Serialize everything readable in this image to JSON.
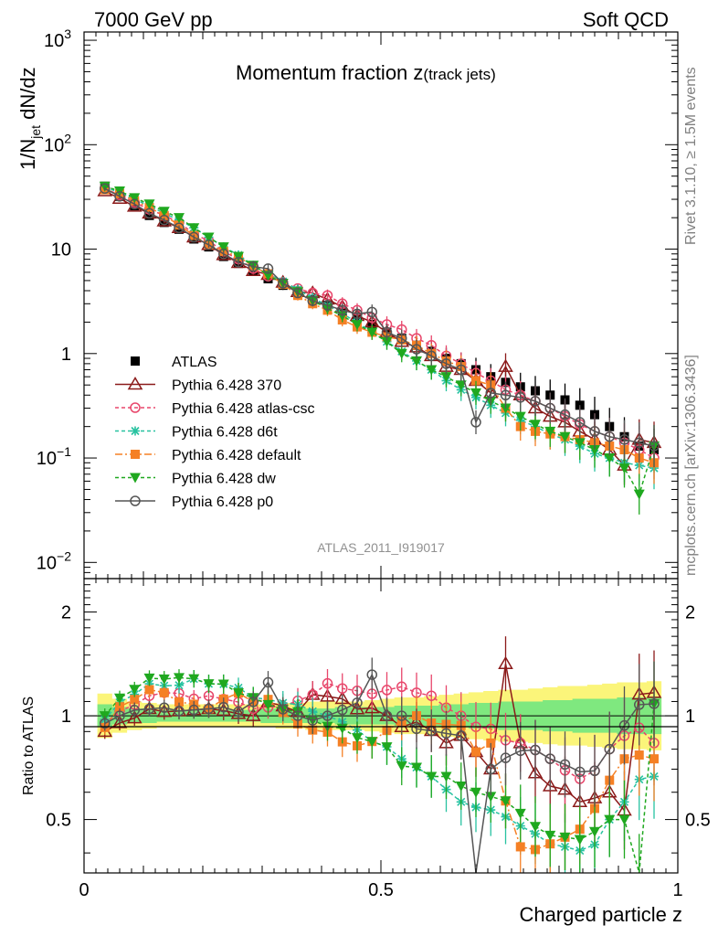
{
  "header": {
    "left": "7000 GeV pp",
    "right": "Soft QCD"
  },
  "side": {
    "rivet": "Rivet 3.1.10, ≥ 1.5M events",
    "mcplots": "mcplots.cern.ch [arXiv:1306.3436]"
  },
  "chart_data": {
    "type": "scatter",
    "title": "Momentum fraction z",
    "title_sub": "(track jets)",
    "analysis": "ATLAS_2011_I919017",
    "xlabel": "Charged particle z",
    "ylabel": "1/N",
    "ylabel_sub": "jet",
    "ylabel_tail": " dN/dz",
    "ratio_ylabel": "Ratio to ATLAS",
    "xlim": [
      0,
      1
    ],
    "ylim": [
      0.007,
      1200
    ],
    "ratio_ylim": [
      0.35,
      2.5
    ],
    "yscale": "log",
    "ratio_yscale": "log",
    "x_ticks": [
      "0",
      "0.5",
      "1"
    ],
    "y_ticks": [
      {
        "base": "10",
        "exp": "3"
      },
      {
        "base": "10",
        "exp": "2"
      },
      {
        "base": "10",
        "exp": ""
      },
      {
        "base": "1",
        "exp": ""
      },
      {
        "base": "10",
        "exp": "−1"
      },
      {
        "base": "10",
        "exp": "−2"
      }
    ],
    "ratio_ticks": [
      "2",
      "1",
      "0.5"
    ],
    "x": [
      0.035,
      0.06,
      0.085,
      0.11,
      0.135,
      0.16,
      0.185,
      0.21,
      0.235,
      0.26,
      0.285,
      0.31,
      0.335,
      0.36,
      0.385,
      0.41,
      0.435,
      0.46,
      0.485,
      0.51,
      0.535,
      0.56,
      0.585,
      0.61,
      0.635,
      0.66,
      0.685,
      0.71,
      0.735,
      0.76,
      0.785,
      0.81,
      0.835,
      0.86,
      0.885,
      0.91,
      0.935,
      0.96
    ],
    "legend_position": "lower-left",
    "series": [
      {
        "name": "ATLAS",
        "color": "#000000",
        "marker": "square-filled",
        "dash": "none",
        "values": [
          40,
          32,
          26,
          21,
          18,
          15.5,
          12.5,
          10.5,
          8.5,
          7.3,
          6.2,
          5.2,
          4.5,
          3.8,
          3.3,
          2.9,
          2.5,
          2.2,
          1.9,
          1.6,
          1.4,
          1.2,
          1.05,
          0.9,
          0.8,
          0.7,
          0.6,
          0.53,
          0.48,
          0.44,
          0.4,
          0.36,
          0.32,
          0.26,
          0.2,
          0.16,
          0.13,
          0.12
        ]
      },
      {
        "name": "Pythia 6.428 370",
        "color": "#8b1a1a",
        "marker": "triangle-open",
        "dash": "none",
        "values": [
          36,
          30.5,
          25.6,
          22,
          18.5,
          16,
          13,
          11,
          8.8,
          7.4,
          6.2,
          5.7,
          4.8,
          3.9,
          3.8,
          3.3,
          2.8,
          2.3,
          2.0,
          1.6,
          1.3,
          1.15,
          0.95,
          0.75,
          0.7,
          0.55,
          0.42,
          0.75,
          0.4,
          0.3,
          0.25,
          0.22,
          0.18,
          0.15,
          0.12,
          0.085,
          0.15,
          0.14
        ]
      },
      {
        "name": "Pythia 6.428 atlas-csc",
        "color": "#e8466b",
        "marker": "circle-open",
        "dash": "4,3",
        "values": [
          38,
          33,
          28,
          24,
          21,
          18,
          14,
          12,
          9.5,
          8,
          6.5,
          5.5,
          4.8,
          4.2,
          3.8,
          3.6,
          3.0,
          2.6,
          2.2,
          1.9,
          1.7,
          1.4,
          1.2,
          0.95,
          0.8,
          0.65,
          0.55,
          0.45,
          0.4,
          0.35,
          0.3,
          0.25,
          0.21,
          0.18,
          0.16,
          0.14,
          0.12,
          0.1
        ]
      },
      {
        "name": "Pythia 6.428 d6t",
        "color": "#27c2a0",
        "marker": "star",
        "dash": "4,3",
        "values": [
          39,
          35,
          30,
          26,
          22,
          19,
          16,
          13,
          10.5,
          8.8,
          7,
          5.8,
          4.9,
          4.1,
          3.4,
          2.9,
          2.4,
          2.0,
          1.6,
          1.3,
          1.05,
          0.85,
          0.7,
          0.55,
          0.45,
          0.38,
          0.32,
          0.27,
          0.23,
          0.2,
          0.17,
          0.15,
          0.13,
          0.11,
          0.1,
          0.09,
          0.085,
          0.08
        ]
      },
      {
        "name": "Pythia 6.428 default",
        "color": "#f58025",
        "marker": "square-filled",
        "dash": "8,3,2,3",
        "values": [
          37,
          34,
          29,
          25,
          21,
          17,
          13.5,
          11,
          9.5,
          8.5,
          6.8,
          5.8,
          4.6,
          3.6,
          3.0,
          2.6,
          2.1,
          1.8,
          1.6,
          1.45,
          1.35,
          1.2,
          1.0,
          0.85,
          0.75,
          0.55,
          0.5,
          0.3,
          0.2,
          0.18,
          0.17,
          0.16,
          0.15,
          0.14,
          0.13,
          0.12,
          0.1,
          0.09
        ]
      },
      {
        "name": "Pythia 6.428 dw",
        "color": "#1fa81f",
        "marker": "triangle-down-filled",
        "dash": "4,3",
        "values": [
          40,
          36,
          31,
          27,
          23,
          20,
          16,
          13,
          10.5,
          8.5,
          7,
          5.6,
          4.7,
          3.9,
          3.2,
          2.7,
          2.3,
          1.9,
          1.6,
          1.3,
          1.0,
          0.85,
          0.7,
          0.6,
          0.5,
          0.42,
          0.35,
          0.3,
          0.25,
          0.21,
          0.18,
          0.16,
          0.14,
          0.12,
          0.1,
          0.08,
          0.045,
          0.13
        ]
      },
      {
        "name": "Pythia 6.428 p0",
        "color": "#555555",
        "marker": "circle-open",
        "dash": "none",
        "values": [
          38,
          32,
          27,
          22,
          19,
          16,
          13,
          11,
          9,
          7.5,
          6.8,
          6.5,
          4.7,
          3.8,
          3.2,
          2.9,
          2.6,
          2.4,
          2.5,
          1.6,
          1.4,
          1.1,
          0.95,
          0.8,
          0.7,
          0.22,
          0.42,
          0.4,
          0.38,
          0.35,
          0.3,
          0.26,
          0.22,
          0.18,
          0.16,
          0.15,
          0.14,
          0.13
        ]
      }
    ],
    "ratio_band_outer": [
      0.16,
      0.12,
      0.1,
      0.09,
      0.08,
      0.08,
      0.08,
      0.08,
      0.08,
      0.08,
      0.08,
      0.08,
      0.09,
      0.09,
      0.1,
      0.1,
      0.1,
      0.1,
      0.11,
      0.12,
      0.13,
      0.13,
      0.14,
      0.15,
      0.16,
      0.17,
      0.18,
      0.19,
      0.19,
      0.2,
      0.21,
      0.22,
      0.22,
      0.23,
      0.24,
      0.25,
      0.25,
      0.26
    ],
    "ratio_band_inner": [
      0.08,
      0.06,
      0.05,
      0.05,
      0.04,
      0.04,
      0.04,
      0.04,
      0.04,
      0.04,
      0.04,
      0.05,
      0.05,
      0.05,
      0.05,
      0.05,
      0.06,
      0.06,
      0.06,
      0.06,
      0.07,
      0.07,
      0.07,
      0.08,
      0.08,
      0.09,
      0.09,
      0.1,
      0.1,
      0.1,
      0.11,
      0.11,
      0.12,
      0.12,
      0.12,
      0.13,
      0.13,
      0.13
    ]
  }
}
